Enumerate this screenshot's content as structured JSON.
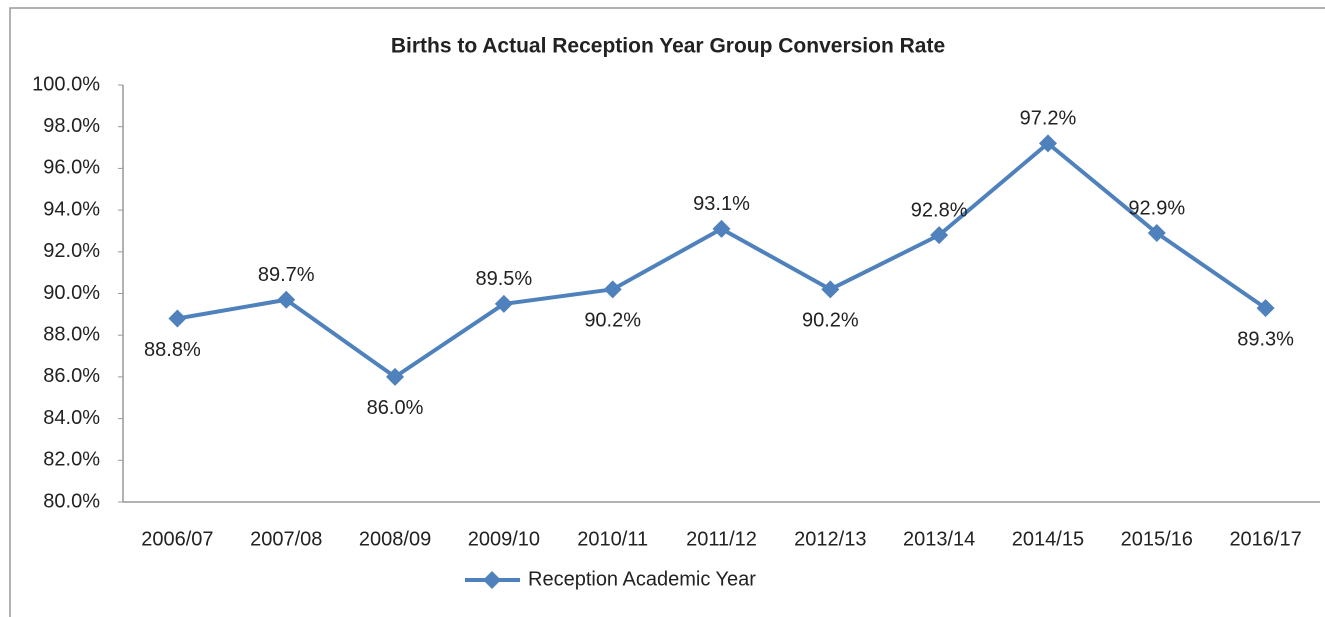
{
  "chart_data": {
    "type": "line",
    "title": "Births to Actual Reception Year Group Conversion Rate",
    "categories": [
      "2006/07",
      "2007/08",
      "2008/09",
      "2009/10",
      "2010/11",
      "2011/12",
      "2012/13",
      "2013/14",
      "2014/15",
      "2015/16",
      "2016/17"
    ],
    "series": [
      {
        "name": "Reception Academic Year",
        "color": "#4f81bd",
        "values": [
          88.8,
          89.7,
          86.0,
          89.5,
          90.2,
          93.1,
          90.2,
          92.8,
          97.2,
          92.9,
          89.3
        ],
        "value_labels": [
          "88.8%",
          "89.7%",
          "86.0%",
          "89.5%",
          "90.2%",
          "93.1%",
          "90.2%",
          "92.8%",
          "97.2%",
          "92.9%",
          "89.3%"
        ]
      }
    ],
    "ylim": [
      80,
      100
    ],
    "yticks": [
      {
        "value": 80,
        "label": "80.0%"
      },
      {
        "value": 82,
        "label": "82.0%"
      },
      {
        "value": 84,
        "label": "84.0%"
      },
      {
        "value": 86,
        "label": "86.0%"
      },
      {
        "value": 88,
        "label": "88.0%"
      },
      {
        "value": 90,
        "label": "90.0%"
      },
      {
        "value": 92,
        "label": "92.0%"
      },
      {
        "value": 94,
        "label": "94.0%"
      },
      {
        "value": 96,
        "label": "96.0%"
      },
      {
        "value": 98,
        "label": "98.0%"
      },
      {
        "value": 100,
        "label": "100.0%"
      }
    ],
    "legend": "bottom"
  }
}
